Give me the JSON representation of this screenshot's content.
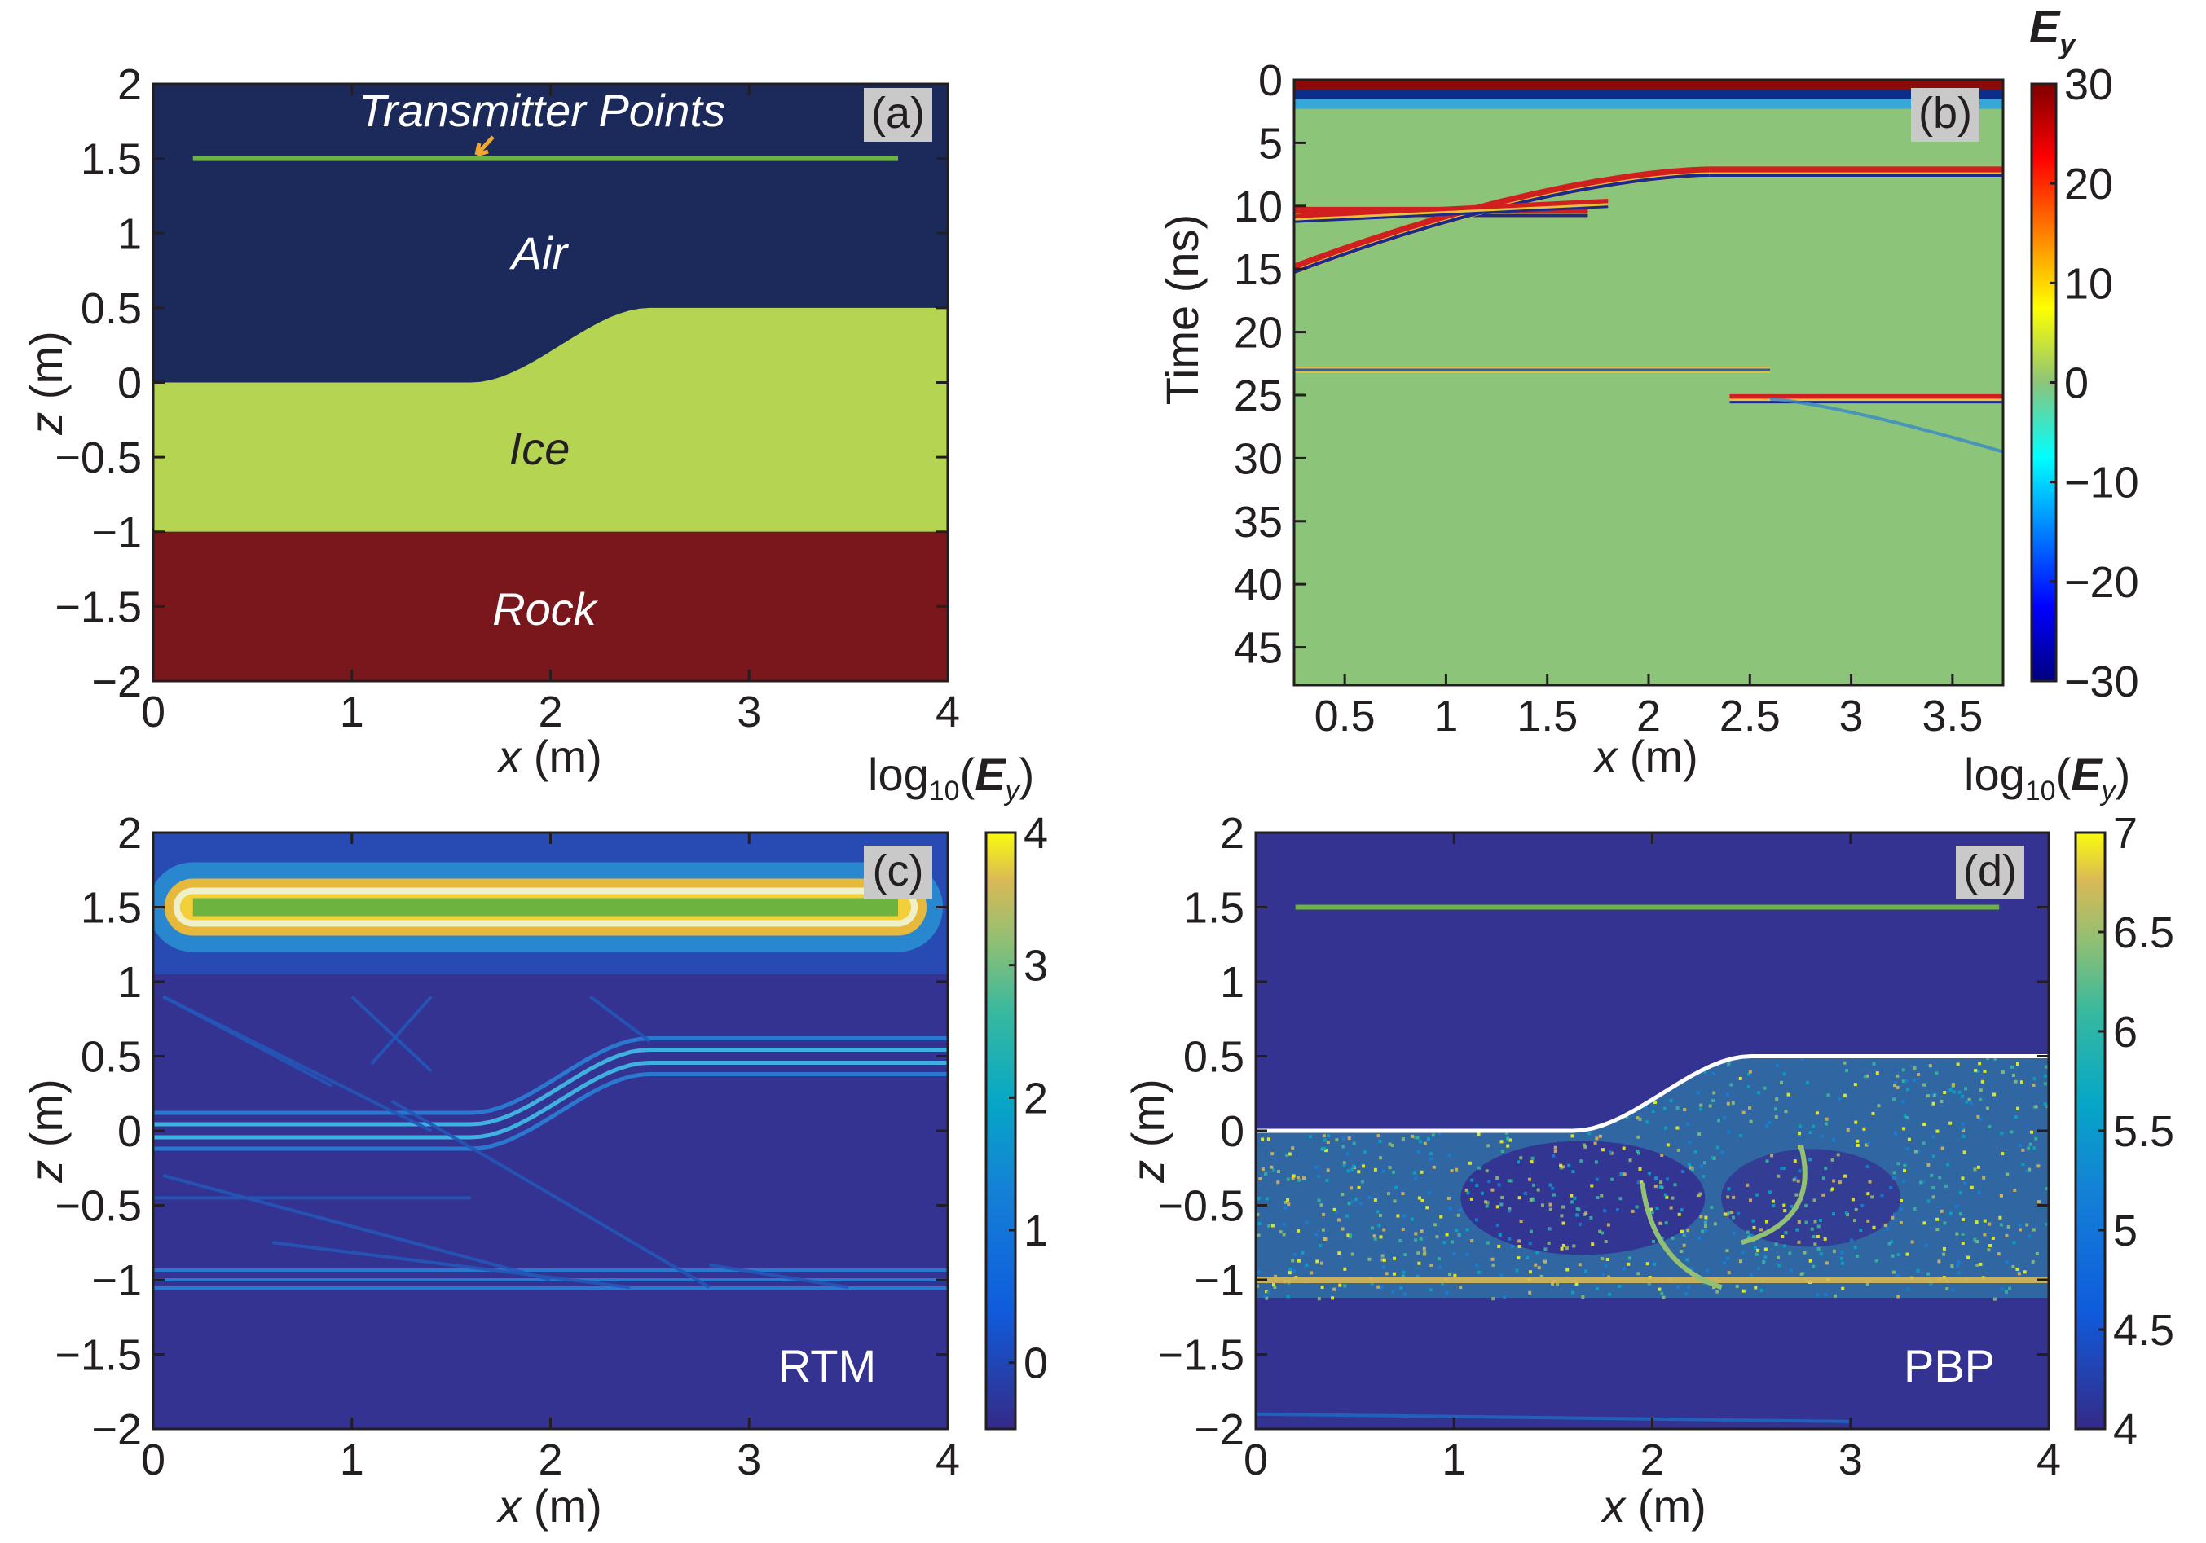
{
  "chart_data": [
    {
      "panel": "a",
      "type": "other",
      "panel_label": "(a)",
      "xlabel_var": "x",
      "xlabel_unit": " (m)",
      "ylabel_var": "z",
      "ylabel_unit": " (m)",
      "xlim": [
        0,
        4
      ],
      "ylim": [
        -2,
        2
      ],
      "xticks": [
        "0",
        "1",
        "2",
        "3",
        "4"
      ],
      "yticks": [
        "2",
        "1.5",
        "1",
        "0.5",
        "0",
        "−0.5",
        "−1",
        "−1.5",
        "−2"
      ],
      "layers": [
        {
          "name": "Air",
          "color": "#1b2a5a",
          "top": 2,
          "bottom": "interface"
        },
        {
          "name": "Ice",
          "color": "#b4d452",
          "top": "interface",
          "bottom": -1
        },
        {
          "name": "Rock",
          "color": "#7a171c",
          "top": -1,
          "bottom": -2
        }
      ],
      "interface": {
        "left_z": 0,
        "right_z": 0.5,
        "transition_x": [
          1.6,
          2.5
        ]
      },
      "transmitter_line": {
        "label": "Transmitter Points",
        "z": 1.5,
        "x_range": [
          0.2,
          3.75
        ],
        "color": "#6cb33f"
      },
      "arrow_color": "#f0a830"
    },
    {
      "panel": "b",
      "type": "heatmap",
      "panel_label": "(b)",
      "xlabel_var": "x",
      "xlabel_unit": " (m)",
      "ylabel": "Time (ns)",
      "xlim": [
        0.25,
        3.75
      ],
      "ylim": [
        0,
        48
      ],
      "xticks": [
        "0.5",
        "1",
        "1.5",
        "2",
        "2.5",
        "3",
        "3.5"
      ],
      "yticks": [
        "0",
        "5",
        "10",
        "15",
        "20",
        "25",
        "30",
        "35",
        "40",
        "45"
      ],
      "colorbar": {
        "title_var": "E",
        "title_sub": "y",
        "range": [
          -30,
          30
        ],
        "ticks": [
          "30",
          "20",
          "10",
          "0",
          "−10",
          "−20",
          "−30"
        ]
      },
      "events": [
        {
          "name": "direct wave",
          "t": 0.3
        },
        {
          "name": "air-ice reflection left",
          "t": 10.5,
          "x_range": [
            0.25,
            1.7
          ]
        },
        {
          "name": "air-ice reflection right",
          "t": 7.3,
          "x_range": [
            2.3,
            3.75
          ]
        },
        {
          "name": "diffraction",
          "t_start": 15,
          "t_end": 7.3,
          "x_range": [
            0.25,
            2.3
          ]
        },
        {
          "name": "ice-rock reflection left",
          "t": 23,
          "x_range": [
            0.25,
            2.6
          ]
        },
        {
          "name": "ice-rock reflection right",
          "t": 25.3,
          "x_range": [
            2.4,
            3.75
          ]
        },
        {
          "name": "diffraction tail",
          "t_start": 25.3,
          "t_end": 29.5,
          "x_range": [
            2.6,
            3.75
          ]
        }
      ]
    },
    {
      "panel": "c",
      "type": "heatmap",
      "panel_label": "(c)",
      "method_label": "RTM",
      "xlabel_var": "x",
      "xlabel_unit": " (m)",
      "ylabel_var": "z",
      "ylabel_unit": " (m)",
      "xlim": [
        0,
        4
      ],
      "ylim": [
        -2,
        2
      ],
      "xticks": [
        "0",
        "1",
        "2",
        "3",
        "4"
      ],
      "yticks": [
        "2",
        "1.5",
        "1",
        "0.5",
        "0",
        "−0.5",
        "−1",
        "−1.5",
        "−2"
      ],
      "colorbar": {
        "title_pre": "log",
        "title_sub": "10",
        "title_var": "E",
        "title_var_sub": "y",
        "range": [
          -0.5,
          4
        ],
        "ticks": [
          "4",
          "3",
          "2",
          "1",
          "0"
        ]
      },
      "imaged_interfaces": [
        {
          "name": "air-ice",
          "left_z": 0,
          "right_z": 0.5
        },
        {
          "name": "ice-rock",
          "z": -1
        },
        {
          "name": "source artifact",
          "z": 1.5,
          "x_range": [
            0.2,
            3.75
          ]
        }
      ]
    },
    {
      "panel": "d",
      "type": "heatmap",
      "panel_label": "(d)",
      "method_label": "PBP",
      "xlabel_var": "x",
      "xlabel_unit": " (m)",
      "ylabel_var": "z",
      "ylabel_unit": " (m)",
      "xlim": [
        0,
        4
      ],
      "ylim": [
        -2,
        2
      ],
      "xticks": [
        "0",
        "1",
        "2",
        "3",
        "4"
      ],
      "yticks": [
        "2",
        "1.5",
        "1",
        "0.5",
        "0",
        "−0.5",
        "−1",
        "−1.5",
        "−2"
      ],
      "colorbar": {
        "title_pre": "log",
        "title_sub": "10",
        "title_var": "E",
        "title_var_sub": "y",
        "range": [
          4,
          7
        ],
        "ticks": [
          "7",
          "6.5",
          "6",
          "5.5",
          "5",
          "4.5",
          "4"
        ]
      },
      "transmitter_line": {
        "z": 1.5,
        "x_range": [
          0.2,
          3.75
        ],
        "color": "#6cb33f"
      },
      "true_interface": {
        "left_z": 0,
        "right_z": 0.5,
        "color": "#ffffff"
      }
    }
  ],
  "colors": {
    "navy": "#1b2a5a",
    "ice": "#b4d452",
    "rock": "#7a171c",
    "seismic_bg": "#8cc479",
    "heat_bg": "#343391",
    "green_line": "#6cb33f"
  }
}
